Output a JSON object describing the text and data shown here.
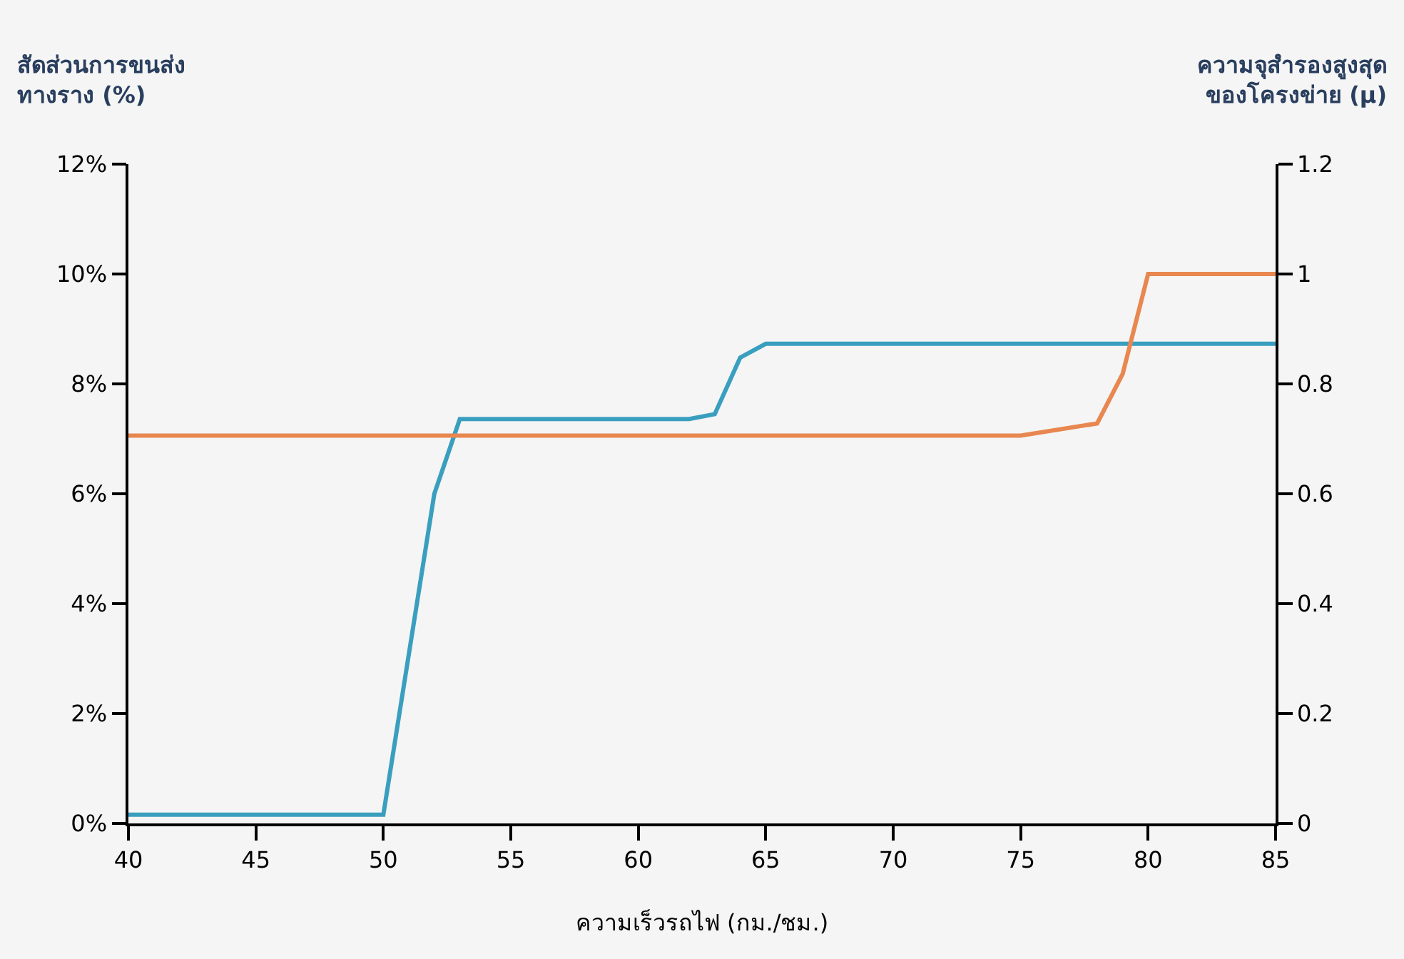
{
  "chart_data": {
    "type": "line",
    "xlabel": "ความเร็วรถไฟ (กม./ชม.)",
    "ylabel": "สัดส่วนการขนส่ง\nทางราง (%)",
    "y2label": "ความจุสำรองสูงสุด\nของโครงข่าย (μ)",
    "xlim": [
      40,
      85
    ],
    "xticks": [
      40,
      45,
      50,
      55,
      60,
      65,
      70,
      75,
      80,
      85
    ],
    "ylim": [
      0,
      12
    ],
    "yticks": [
      {
        "value": 0,
        "label": "0%"
      },
      {
        "value": 2,
        "label": "2%"
      },
      {
        "value": 4,
        "label": "4%"
      },
      {
        "value": 6,
        "label": "6%"
      },
      {
        "value": 8,
        "label": "8%"
      },
      {
        "value": 10,
        "label": "10%"
      },
      {
        "value": 12,
        "label": "12%"
      }
    ],
    "y2lim": [
      0,
      1.2
    ],
    "y2ticks": [
      0,
      0.2,
      0.4,
      0.6,
      0.8,
      1,
      1.2
    ],
    "grid": false,
    "legend": false,
    "marker": "none",
    "line_style": "solid",
    "series": [
      {
        "color": "#3a9fbf",
        "x": [
          40,
          50,
          52,
          53,
          62,
          63,
          64,
          65,
          85
        ],
        "values": [
          0.16,
          0.16,
          6.0,
          7.36,
          7.36,
          7.45,
          8.48,
          8.73,
          8.73
        ]
      },
      {
        "color": "#e8874f",
        "axis": "y2",
        "x": [
          40,
          75,
          78,
          79,
          80,
          85
        ],
        "values": [
          0.706,
          0.706,
          0.728,
          0.818,
          1.0,
          1.0
        ]
      }
    ]
  }
}
